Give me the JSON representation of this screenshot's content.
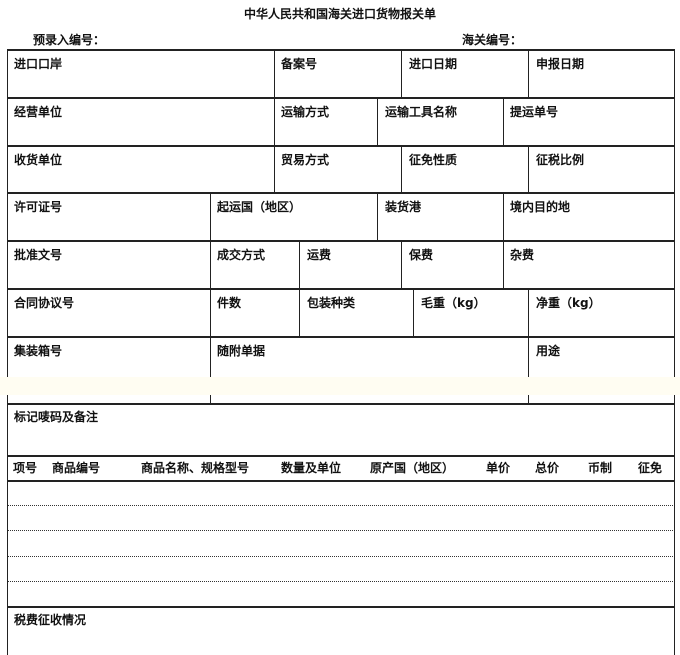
{
  "title": "中华人民共和国海关进口货物报关单",
  "pre_entry_no_label": "预录入编号：",
  "customs_no_label": "海关编号：",
  "rows": [
    [
      "进口口岸",
      "备案号",
      "进口日期",
      "申报日期"
    ],
    [
      "经营单位",
      "运输方式",
      "运输工具名称",
      "提运单号"
    ],
    [
      "收货单位",
      "贸易方式",
      "征免性质",
      "征税比例"
    ],
    [
      "许可证号",
      "起运国（地区）",
      "装货港",
      "境内目的地"
    ],
    [
      "批准文号",
      "成交方式",
      "运费",
      "保费",
      "杂费"
    ],
    [
      "合同协议号",
      "件数",
      "包装种类",
      "毛重（kg）",
      "净重（kg）"
    ],
    [
      "集装箱号",
      "随附单据",
      "用途"
    ]
  ],
  "remarks_label": "标记唛码及备注",
  "goods_columns": [
    "项号",
    "商品编号",
    "商品名称、规格型号",
    "数量及单位",
    "原产国（地区）",
    "单价",
    "总价",
    "币制",
    "征免"
  ],
  "tax_label": "税费征收情况"
}
